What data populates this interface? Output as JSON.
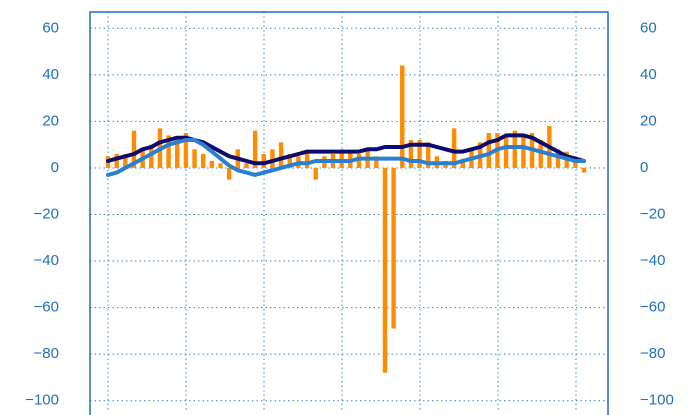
{
  "chart_data": {
    "type": "bar",
    "categories": [
      null,
      null,
      null,
      null,
      null,
      null,
      null,
      null,
      null,
      null,
      null,
      null,
      null,
      null,
      null,
      null,
      null,
      null,
      null,
      null,
      null,
      null,
      null,
      null,
      null,
      null,
      null,
      null,
      null,
      null,
      null,
      null,
      null,
      null,
      null,
      null,
      null,
      null,
      null,
      null,
      null,
      null,
      null,
      null,
      null,
      null,
      null,
      null,
      null,
      null,
      null,
      null,
      null,
      null,
      null,
      null
    ],
    "values": [
      5,
      6,
      6,
      16,
      8,
      10,
      17,
      14,
      12,
      15,
      8,
      6,
      3,
      2,
      -5,
      8,
      2,
      16,
      6,
      8,
      11,
      6,
      5,
      7,
      -5,
      5,
      6,
      8,
      7,
      6,
      8,
      5,
      -88,
      -69,
      44,
      12,
      12,
      11,
      5,
      3,
      17,
      4,
      8,
      11,
      15,
      15,
      14,
      16,
      14,
      15,
      12,
      18,
      8,
      7,
      3,
      -2
    ],
    "color": "#ff8c00",
    "lines": [
      {
        "color": "#0b0b70",
        "values": [
          3,
          4,
          5,
          6,
          8,
          9,
          11,
          12,
          13,
          13,
          12,
          11,
          9,
          7,
          5,
          4,
          3,
          2,
          2,
          3,
          4,
          5,
          6,
          7,
          7,
          7,
          7,
          7,
          7,
          7,
          8,
          8,
          9,
          9,
          9,
          10,
          10,
          10,
          9,
          8,
          7,
          7,
          8,
          9,
          11,
          12,
          14,
          14,
          14,
          13,
          11,
          9,
          7,
          5,
          4,
          3
        ]
      },
      {
        "color": "#2a7fd0",
        "values": [
          -3,
          -2,
          0,
          2,
          4,
          6,
          8,
          10,
          11,
          12,
          12,
          10,
          7,
          4,
          1,
          -1,
          -2,
          -3,
          -2,
          -1,
          0,
          1,
          2,
          2,
          3,
          3,
          3,
          3,
          3,
          4,
          4,
          4,
          4,
          4,
          4,
          3,
          3,
          2,
          2,
          2,
          2,
          3,
          4,
          5,
          6,
          8,
          9,
          9,
          9,
          8,
          7,
          6,
          5,
          4,
          3,
          3
        ]
      }
    ],
    "ylim": [
      -104,
      67
    ],
    "yticks": [
      {
        "value": -100,
        "label": "−100"
      },
      {
        "value": -80,
        "label": "−80"
      },
      {
        "value": -60,
        "label": "−60"
      },
      {
        "value": -40,
        "label": "−40"
      },
      {
        "value": -20,
        "label": "−20"
      },
      0,
      20,
      40,
      60
    ],
    "grid": true
  }
}
